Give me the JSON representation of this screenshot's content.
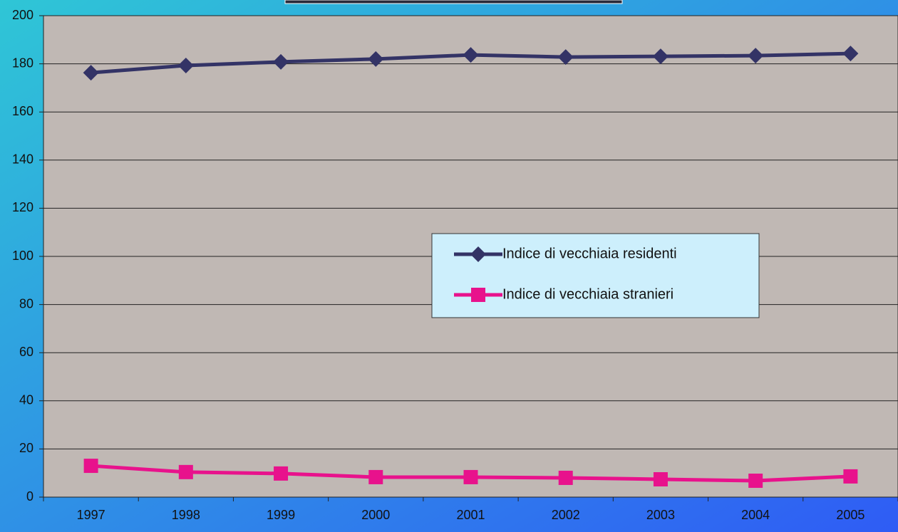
{
  "chart_data": {
    "type": "line",
    "categories": [
      "1997",
      "1998",
      "1999",
      "2000",
      "2001",
      "2002",
      "2003",
      "2004",
      "2005"
    ],
    "series": [
      {
        "name": "Indice di vecchiaia residenti",
        "color": "#333366",
        "marker": "diamond",
        "values": [
          176.3,
          179.3,
          180.8,
          182.0,
          183.7,
          182.8,
          183.1,
          183.4,
          184.3
        ]
      },
      {
        "name": "Indice di vecchiaia stranieri",
        "color": "#e8128c",
        "marker": "square",
        "values": [
          13.0,
          10.4,
          9.8,
          8.3,
          8.3,
          8.0,
          7.4,
          6.8,
          8.6
        ]
      }
    ],
    "ylim": [
      0,
      200
    ],
    "yticks": [
      0,
      20,
      40,
      60,
      80,
      100,
      120,
      140,
      160,
      180,
      200
    ],
    "grid": true
  }
}
